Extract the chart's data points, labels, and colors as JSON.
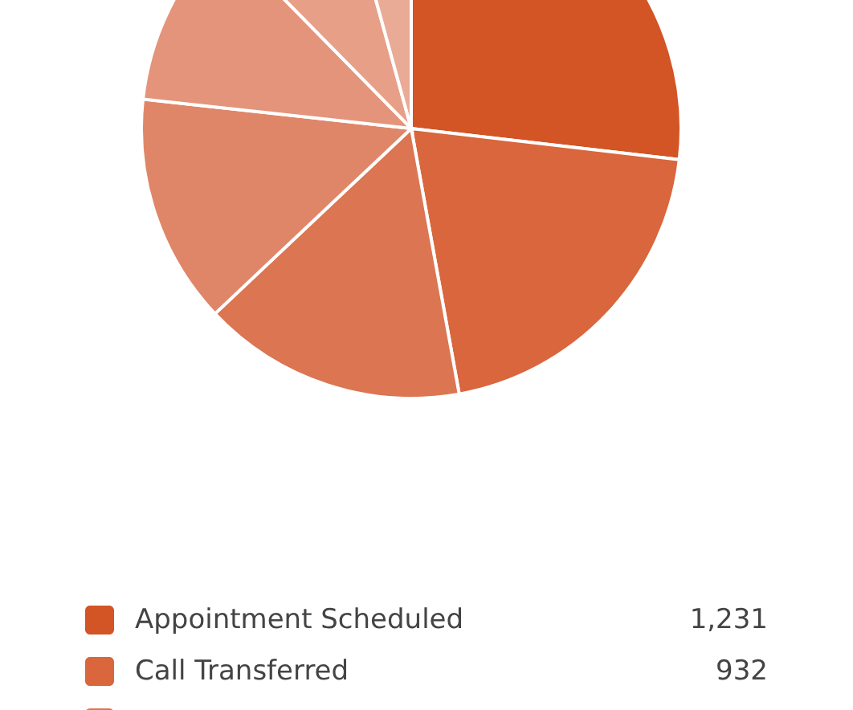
{
  "chart_data": {
    "type": "pie",
    "categories": [
      "Appointment Scheduled",
      "Call Transferred",
      null,
      null,
      null,
      null,
      null
    ],
    "values": [
      1231,
      932,
      725,
      632,
      500,
      371,
      196
    ],
    "value_labels": [
      "1,231",
      "932",
      null,
      null,
      null,
      null,
      null
    ],
    "colors": [
      "#d35424",
      "#d9663d",
      "#dc7552",
      "#e08668",
      "#e4947a",
      "#e79f88",
      "#eaab96"
    ],
    "legend": "bottom"
  }
}
